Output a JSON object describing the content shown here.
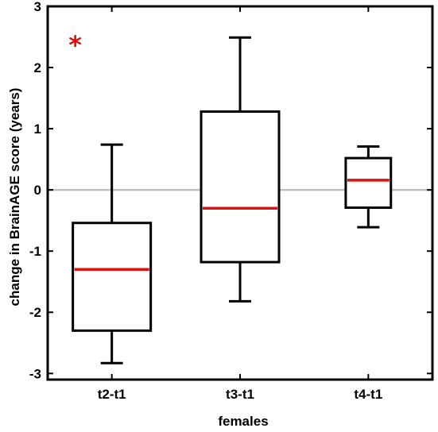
{
  "chart_data": {
    "type": "box",
    "title": "",
    "xlabel": "females",
    "ylabel": "change in BrainAGE score (years)",
    "ylim": [
      -3.1,
      3
    ],
    "yticks": [
      -3,
      -2,
      -1,
      0,
      1,
      2,
      3
    ],
    "categories": [
      "t2-t1",
      "t3-t1",
      "t4-t1"
    ],
    "boxes": [
      {
        "category": "t2-t1",
        "whisker_low": -2.83,
        "q1": -2.3,
        "median": -1.3,
        "q3": -0.54,
        "whisker_high": 0.74,
        "outliers": [
          2.43
        ]
      },
      {
        "category": "t3-t1",
        "whisker_low": -1.82,
        "q1": -1.18,
        "median": -0.3,
        "q3": 1.28,
        "whisker_high": 2.49,
        "outliers": []
      },
      {
        "category": "t4-t1",
        "whisker_low": -0.61,
        "q1": -0.29,
        "median": 0.16,
        "q3": 0.52,
        "whisker_high": 0.71,
        "outliers": []
      }
    ],
    "reference_line": 0,
    "grid": false,
    "colors": {
      "box": "#000000",
      "median": "#e01010",
      "outlier": "#e01010",
      "reference": "#c0c0c0"
    }
  }
}
